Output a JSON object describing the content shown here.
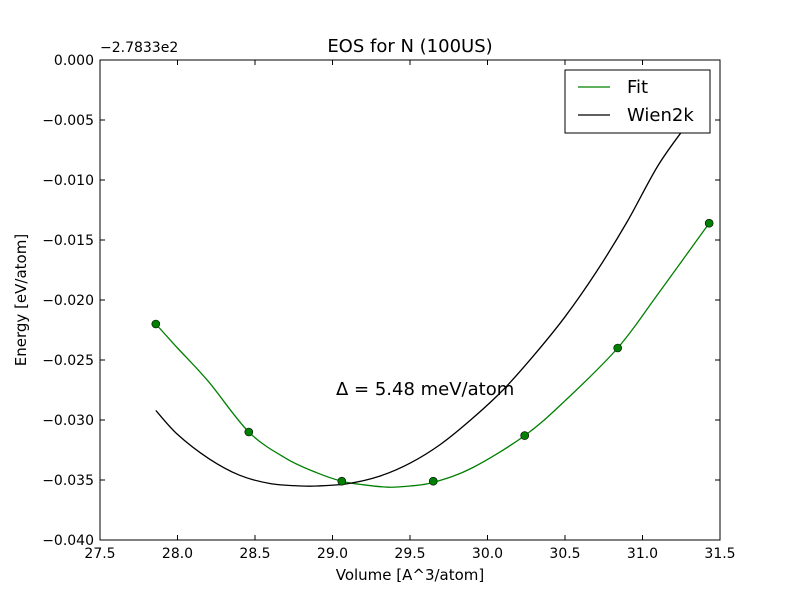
{
  "chart_data": {
    "type": "line",
    "title": "EOS for N (100US)",
    "xlabel": "Volume [A^3/atom]",
    "ylabel": "Energy [eV/atom]",
    "y_offset_label": "−2.7833e2",
    "annotation": "Δ = 5.48 meV/atom",
    "xlim": [
      27.5,
      31.5
    ],
    "ylim": [
      -0.04,
      0.0
    ],
    "x_ticks": [
      27.5,
      28.0,
      28.5,
      29.0,
      29.5,
      30.0,
      30.5,
      31.0,
      31.5
    ],
    "x_tick_labels": [
      "27.5",
      "28.0",
      "28.5",
      "29.0",
      "29.5",
      "30.0",
      "30.5",
      "31.0",
      "31.5"
    ],
    "y_ticks": [
      0.0,
      -0.005,
      -0.01,
      -0.015,
      -0.02,
      -0.025,
      -0.03,
      -0.035,
      -0.04
    ],
    "y_tick_labels": [
      "0.000",
      "−0.005",
      "−0.010",
      "−0.015",
      "−0.020",
      "−0.025",
      "−0.030",
      "−0.035",
      "−0.040"
    ],
    "grid": false,
    "legend_position": "top-right",
    "series": [
      {
        "name": "Fit",
        "color": "#008000",
        "style": "line",
        "x": [
          27.86,
          28.0,
          28.2,
          28.46,
          28.7,
          28.9,
          29.06,
          29.2,
          29.36,
          29.5,
          29.65,
          29.9,
          30.24,
          30.5,
          30.84,
          31.1,
          31.43
        ],
        "y": [
          -0.022,
          -0.024,
          -0.0268,
          -0.031,
          -0.0332,
          -0.0344,
          -0.0351,
          -0.0354,
          -0.0356,
          -0.0355,
          -0.0352,
          -0.034,
          -0.0313,
          -0.0284,
          -0.024,
          -0.0195,
          -0.0136
        ]
      },
      {
        "name": "Wien2k",
        "color": "#000000",
        "style": "line",
        "x": [
          27.86,
          28.0,
          28.2,
          28.4,
          28.6,
          28.8,
          28.9,
          29.1,
          29.3,
          29.5,
          29.7,
          29.9,
          30.1,
          30.3,
          30.5,
          30.7,
          30.9,
          31.1,
          31.28
        ],
        "y": [
          -0.0292,
          -0.0312,
          -0.0332,
          -0.0346,
          -0.0353,
          -0.0355,
          -0.0355,
          -0.0353,
          -0.0347,
          -0.0336,
          -0.032,
          -0.0299,
          -0.0275,
          -0.0246,
          -0.0214,
          -0.0177,
          -0.0135,
          -0.0088,
          -0.0055
        ]
      },
      {
        "name": "",
        "color": "#008000",
        "style": "markers",
        "x": [
          27.86,
          28.46,
          29.06,
          29.65,
          30.24,
          30.84,
          31.43
        ],
        "y": [
          -0.022,
          -0.031,
          -0.0351,
          -0.0351,
          -0.0313,
          -0.024,
          -0.0136
        ]
      }
    ]
  }
}
